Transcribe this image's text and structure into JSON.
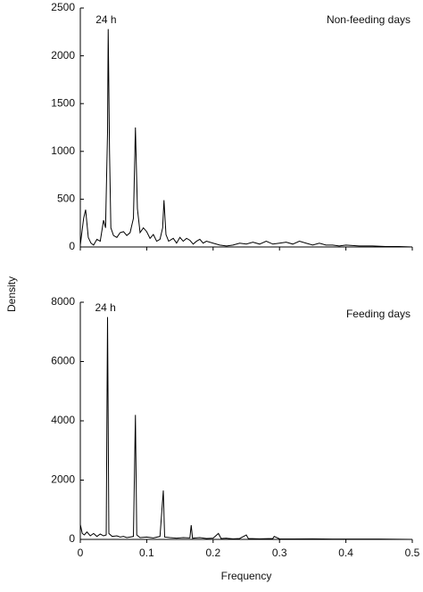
{
  "ylabel": "Density",
  "chart_data": [
    {
      "type": "line",
      "panel_label": "Non-feeding days",
      "peak_label": "24 h",
      "color": "#000000",
      "x": [
        0,
        0.005,
        0.008,
        0.012,
        0.016,
        0.02,
        0.025,
        0.03,
        0.035,
        0.038,
        0.041,
        0.042,
        0.044,
        0.046,
        0.05,
        0.055,
        0.06,
        0.065,
        0.07,
        0.075,
        0.08,
        0.083,
        0.086,
        0.09,
        0.095,
        0.1,
        0.105,
        0.11,
        0.115,
        0.12,
        0.124,
        0.126,
        0.129,
        0.133,
        0.14,
        0.145,
        0.15,
        0.155,
        0.16,
        0.165,
        0.17,
        0.175,
        0.18,
        0.185,
        0.19,
        0.2,
        0.21,
        0.22,
        0.23,
        0.24,
        0.25,
        0.26,
        0.27,
        0.28,
        0.29,
        0.3,
        0.31,
        0.32,
        0.33,
        0.34,
        0.35,
        0.36,
        0.37,
        0.38,
        0.39,
        0.4,
        0.42,
        0.44,
        0.46,
        0.48,
        0.5
      ],
      "values": [
        20,
        300,
        390,
        100,
        40,
        20,
        80,
        60,
        280,
        200,
        1200,
        2280,
        1000,
        200,
        120,
        100,
        150,
        160,
        120,
        150,
        300,
        1250,
        400,
        150,
        200,
        160,
        90,
        130,
        60,
        80,
        200,
        490,
        130,
        60,
        90,
        40,
        100,
        60,
        90,
        70,
        30,
        60,
        80,
        40,
        60,
        40,
        20,
        10,
        20,
        40,
        30,
        50,
        30,
        60,
        30,
        40,
        50,
        30,
        60,
        40,
        20,
        40,
        20,
        20,
        10,
        20,
        10,
        10,
        5,
        5,
        0
      ],
      "xlim": [
        0,
        0.5
      ],
      "xticks": [
        0,
        0.1,
        0.2,
        0.3,
        0.4,
        0.5
      ],
      "xtick_labels": false,
      "ylim": [
        0,
        2500
      ],
      "yticks": [
        0,
        500,
        1000,
        1500,
        2000,
        2500
      ]
    },
    {
      "type": "line",
      "panel_label": "Feeding days",
      "peak_label": "24 h",
      "color": "#000000",
      "xlabel": "Frequency",
      "x": [
        0,
        0.003,
        0.006,
        0.01,
        0.015,
        0.02,
        0.025,
        0.03,
        0.035,
        0.039,
        0.041,
        0.043,
        0.048,
        0.055,
        0.06,
        0.065,
        0.07,
        0.075,
        0.08,
        0.083,
        0.085,
        0.09,
        0.1,
        0.11,
        0.12,
        0.125,
        0.127,
        0.135,
        0.145,
        0.155,
        0.165,
        0.167,
        0.169,
        0.18,
        0.19,
        0.2,
        0.208,
        0.212,
        0.22,
        0.23,
        0.24,
        0.25,
        0.253,
        0.27,
        0.29,
        0.292,
        0.3,
        0.32,
        0.35,
        0.38,
        0.4,
        0.45,
        0.5
      ],
      "values": [
        500,
        200,
        150,
        250,
        120,
        200,
        100,
        180,
        120,
        150,
        7500,
        200,
        100,
        120,
        80,
        100,
        60,
        80,
        100,
        4200,
        150,
        60,
        80,
        50,
        100,
        1650,
        80,
        60,
        40,
        60,
        50,
        480,
        40,
        60,
        30,
        40,
        200,
        30,
        40,
        20,
        30,
        150,
        30,
        20,
        30,
        100,
        20,
        15,
        20,
        10,
        10,
        10,
        0
      ],
      "xlim": [
        0,
        0.5
      ],
      "xticks": [
        0,
        0.1,
        0.2,
        0.3,
        0.4,
        0.5
      ],
      "xtick_labels": true,
      "ylim": [
        0,
        8000
      ],
      "yticks": [
        0,
        2000,
        4000,
        6000,
        8000
      ]
    }
  ]
}
